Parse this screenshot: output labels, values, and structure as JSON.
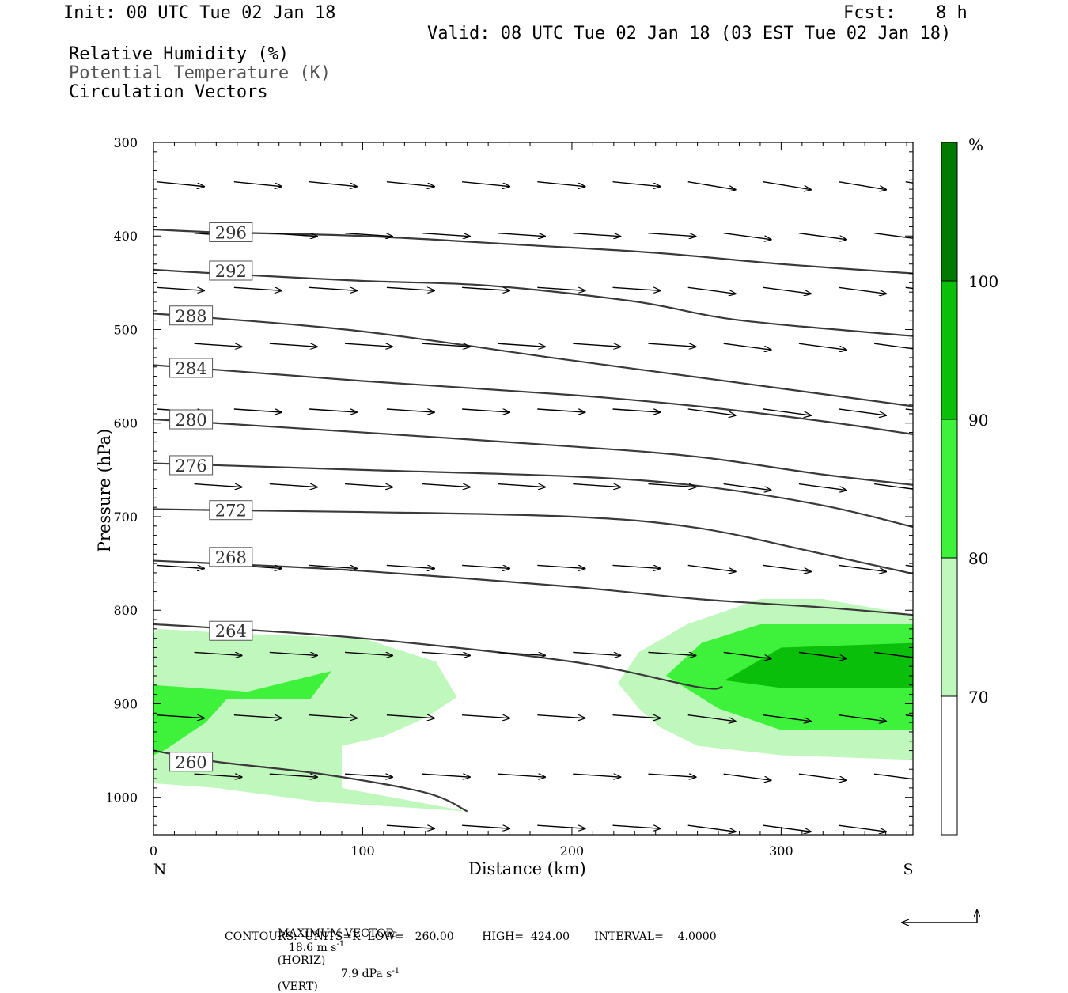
{
  "header": {
    "init": "Init: 00 UTC Tue 02 Jan 18",
    "fcst_label": "Fcst:",
    "fcst_value": "8 h",
    "valid": "Valid: 08 UTC Tue 02 Jan 18 (03 EST Tue 02 Jan 18)"
  },
  "legend_lines": {
    "rh": "Relative Humidity (%)",
    "theta": "Potential Temperature (K)",
    "vectors": "Circulation Vectors"
  },
  "footer": {
    "max_vector_label": "MAXIMUM VECTOR:",
    "horiz": "18.6 m s",
    "horiz_unit": "(HORIZ)",
    "vert": "7.9 dPa s",
    "vert_unit": "(VERT)",
    "exp": "-1",
    "contours": "CONTOURS:  UNITS=K  LOW=   260.00        HIGH=  424.00       INTERVAL=    4.0000"
  },
  "colors": {
    "rh70": "#c0f7bd",
    "rh80": "#3ef23b",
    "rh90": "#0abf0a",
    "rh100": "#007a00",
    "contour": "#3a3a3a"
  },
  "chart_data": {
    "type": "contour",
    "xlabel": "Distance (km)",
    "ylabel": "Pressure (hPa)",
    "xlim": [
      0,
      363
    ],
    "ylim": [
      1040,
      300
    ],
    "x_ticks": [
      0,
      100,
      200,
      300
    ],
    "y_ticks": [
      300,
      400,
      500,
      600,
      700,
      800,
      900,
      1000
    ],
    "x_end_labels": {
      "left": "N",
      "right": "S"
    },
    "colorbar": {
      "unit": "%",
      "levels": [
        70,
        80,
        90,
        100
      ],
      "labels": [
        "70",
        "80",
        "90",
        "100"
      ]
    },
    "theta_lines": [
      {
        "label": "296",
        "pts": [
          [
            0,
            393
          ],
          [
            30,
            396
          ],
          [
            100,
            400
          ],
          [
            180,
            410
          ],
          [
            240,
            418
          ],
          [
            300,
            430
          ],
          [
            363,
            440
          ]
        ],
        "label_at": [
          37,
          396
        ]
      },
      {
        "label": "292",
        "pts": [
          [
            0,
            436
          ],
          [
            30,
            440
          ],
          [
            100,
            448
          ],
          [
            160,
            453
          ],
          [
            230,
            470
          ],
          [
            280,
            490
          ],
          [
            363,
            507
          ]
        ],
        "label_at": [
          37,
          437
        ]
      },
      {
        "label": "288",
        "pts": [
          [
            0,
            483
          ],
          [
            30,
            488
          ],
          [
            100,
            502
          ],
          [
            190,
            530
          ],
          [
            240,
            545
          ],
          [
            300,
            563
          ],
          [
            363,
            582
          ]
        ],
        "label_at": [
          18,
          485
        ]
      },
      {
        "label": "284",
        "pts": [
          [
            0,
            538
          ],
          [
            30,
            543
          ],
          [
            100,
            555
          ],
          [
            200,
            570
          ],
          [
            260,
            582
          ],
          [
            320,
            598
          ],
          [
            363,
            612
          ]
        ],
        "label_at": [
          18,
          541
        ]
      },
      {
        "label": "280",
        "pts": [
          [
            0,
            596
          ],
          [
            30,
            600
          ],
          [
            100,
            610
          ],
          [
            200,
            625
          ],
          [
            260,
            636
          ],
          [
            320,
            655
          ],
          [
            363,
            666
          ]
        ],
        "label_at": [
          18,
          596
        ]
      },
      {
        "label": "276",
        "pts": [
          [
            0,
            643
          ],
          [
            30,
            645
          ],
          [
            100,
            650
          ],
          [
            200,
            657
          ],
          [
            260,
            667
          ],
          [
            320,
            688
          ],
          [
            363,
            711
          ]
        ],
        "label_at": [
          18,
          645
        ]
      },
      {
        "label": "272",
        "pts": [
          [
            0,
            692
          ],
          [
            30,
            693
          ],
          [
            100,
            695
          ],
          [
            200,
            700
          ],
          [
            260,
            712
          ],
          [
            320,
            740
          ],
          [
            363,
            761
          ]
        ],
        "label_at": [
          37,
          693
        ]
      },
      {
        "label": "268",
        "pts": [
          [
            0,
            747
          ],
          [
            30,
            750
          ],
          [
            100,
            758
          ],
          [
            200,
            775
          ],
          [
            260,
            788
          ],
          [
            320,
            797
          ],
          [
            363,
            805
          ]
        ],
        "label_at": [
          37,
          743
        ]
      },
      {
        "label": "264",
        "pts": [
          [
            0,
            815
          ],
          [
            30,
            819
          ],
          [
            100,
            830
          ],
          [
            200,
            855
          ],
          [
            260,
            882
          ],
          [
            272,
            882
          ]
        ],
        "label_at": [
          37,
          822
        ]
      },
      {
        "label": "260",
        "pts": [
          [
            0,
            950
          ],
          [
            30,
            962
          ],
          [
            80,
            975
          ],
          [
            130,
            995
          ],
          [
            150,
            1015
          ]
        ],
        "label_at": [
          18,
          962
        ]
      }
    ],
    "rh_regions": [
      {
        "level": "70-80",
        "pts": [
          [
            2,
            820
          ],
          [
            40,
            825
          ],
          [
            100,
            830
          ],
          [
            135,
            855
          ],
          [
            145,
            893
          ],
          [
            130,
            915
          ],
          [
            110,
            935
          ],
          [
            90,
            945
          ],
          [
            90,
            990
          ],
          [
            150,
            1015
          ],
          [
            80,
            1005
          ],
          [
            30,
            990
          ],
          [
            0,
            985
          ],
          [
            0,
            825
          ]
        ]
      },
      {
        "level": "70-80",
        "pts": [
          [
            222,
            878
          ],
          [
            232,
            845
          ],
          [
            255,
            815
          ],
          [
            290,
            788
          ],
          [
            320,
            788
          ],
          [
            363,
            805
          ],
          [
            363,
            960
          ],
          [
            300,
            955
          ],
          [
            260,
            945
          ],
          [
            242,
            925
          ],
          [
            232,
            905
          ]
        ]
      },
      {
        "level": "80-90",
        "pts": [
          [
            0,
            880
          ],
          [
            45,
            887
          ],
          [
            85,
            865
          ],
          [
            75,
            895
          ],
          [
            35,
            895
          ],
          [
            25,
            920
          ],
          [
            5,
            950
          ],
          [
            0,
            955
          ]
        ]
      },
      {
        "level": "80-90",
        "pts": [
          [
            245,
            870
          ],
          [
            262,
            835
          ],
          [
            290,
            815
          ],
          [
            363,
            815
          ],
          [
            363,
            928
          ],
          [
            300,
            928
          ],
          [
            270,
            905
          ]
        ]
      },
      {
        "level": "90-100",
        "pts": [
          [
            273,
            875
          ],
          [
            300,
            840
          ],
          [
            363,
            835
          ],
          [
            363,
            883
          ],
          [
            300,
            883
          ]
        ]
      }
    ],
    "vector_rows": [
      {
        "p": 342,
        "x": [
          0,
          37,
          73,
          110,
          146,
          182,
          218,
          254,
          290,
          326,
          358
        ]
      },
      {
        "p": 397,
        "x": [
          18,
          54,
          90,
          127,
          163,
          199,
          235,
          271,
          307,
          343
        ]
      },
      {
        "p": 455,
        "x": [
          0,
          37,
          73,
          110,
          146,
          182,
          218,
          254,
          290,
          326,
          358
        ]
      },
      {
        "p": 515,
        "x": [
          18,
          54,
          90,
          127,
          163,
          199,
          235,
          271,
          307,
          343
        ]
      },
      {
        "p": 585,
        "x": [
          0,
          37,
          73,
          110,
          146,
          182,
          218,
          254,
          290,
          326,
          358
        ]
      },
      {
        "p": 665,
        "x": [
          18,
          54,
          90,
          127,
          163,
          199,
          235,
          271,
          307,
          343
        ]
      },
      {
        "p": 752,
        "x": [
          0,
          37,
          73,
          110,
          146,
          182,
          218,
          254,
          290,
          326,
          358
        ]
      },
      {
        "p": 845,
        "x": [
          18,
          54,
          90,
          127,
          163,
          199,
          235,
          271,
          307,
          343
        ]
      },
      {
        "p": 912,
        "x": [
          0,
          37,
          73,
          110,
          146,
          182,
          218,
          254,
          290,
          326,
          358
        ]
      },
      {
        "p": 975,
        "x": [
          18,
          54,
          90,
          127,
          163,
          199,
          235,
          271,
          307,
          343
        ]
      },
      {
        "p": 1030,
        "x": [
          110,
          146,
          182,
          218,
          254,
          290,
          326
        ]
      }
    ]
  }
}
